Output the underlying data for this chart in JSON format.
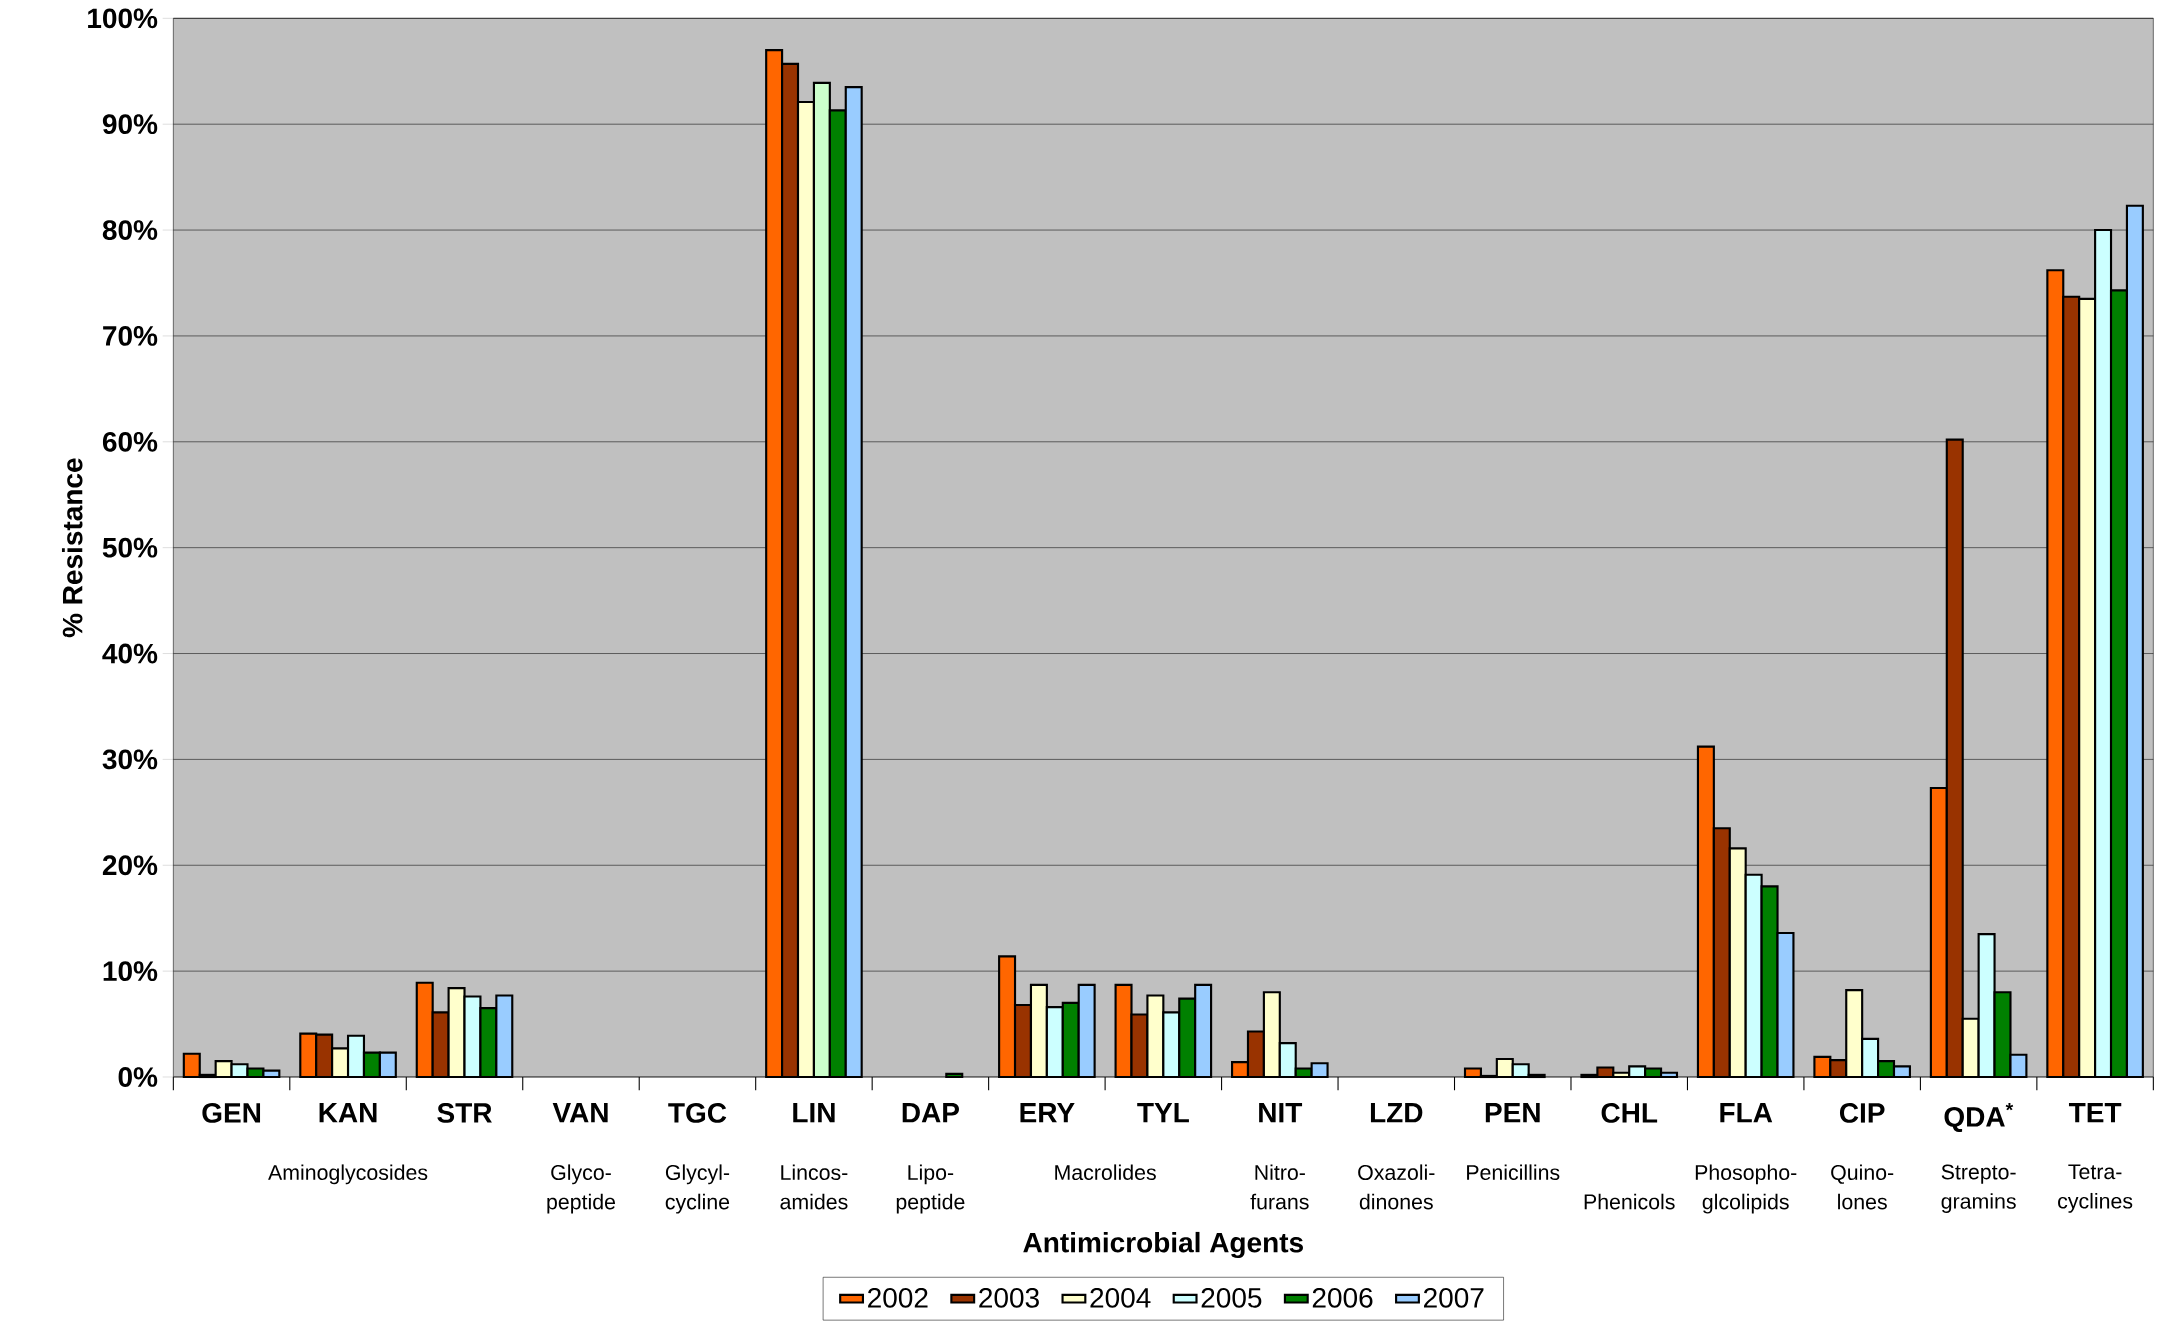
{
  "chart_data": {
    "type": "bar",
    "xlabel": "Antimicrobial Agents",
    "ylabel": "% Resistance",
    "categories": [
      "GEN",
      "KAN",
      "STR",
      "VAN",
      "TGC",
      "LIN",
      "DAP",
      "ERY",
      "TYL",
      "NIT",
      "LZD",
      "PEN",
      "CHL",
      "FLA",
      "CIP",
      "QDA$^{*}$",
      "TET"
    ],
    "series": [
      {
        "name": "2002",
        "color": "#ff6600",
        "values": [
          2.2,
          4.1,
          8.9,
          null,
          null,
          97.0,
          null,
          11.4,
          8.7,
          1.4,
          null,
          0.8,
          0.2,
          31.2,
          1.9,
          27.3,
          76.2
        ]
      },
      {
        "name": "2003",
        "color": "#993300",
        "values": [
          0.2,
          4.0,
          6.1,
          null,
          null,
          95.7,
          null,
          6.8,
          5.9,
          4.3,
          null,
          0.1,
          0.9,
          23.5,
          1.6,
          60.2,
          73.7
        ]
      },
      {
        "name": "2004",
        "color": "#ffffcc",
        "values": [
          1.5,
          2.7,
          8.4,
          null,
          null,
          92.1,
          null,
          8.7,
          7.7,
          8.0,
          null,
          1.7,
          0.4,
          21.6,
          8.2,
          5.5,
          73.5
        ]
      },
      {
        "name": "2005",
        "color": "#ccffff",
        "colors": [
          "#ccffff",
          "#ccffff",
          "#ccffff",
          "#ccffff",
          "#ccffff",
          "#ccffcc",
          "#ccffff",
          "#ccffff",
          "#ccffff",
          "#ccffff",
          "#ccffff",
          "#ccffff",
          "#ccffff",
          "#ccffff",
          "#ccffff",
          "#ccffff",
          "#ccffff"
        ],
        "values": [
          1.2,
          3.9,
          7.6,
          null,
          null,
          93.9,
          null,
          6.6,
          6.1,
          3.2,
          null,
          1.2,
          1.0,
          19.1,
          3.6,
          13.5,
          80.0
        ]
      },
      {
        "name": "2006",
        "color": "#008000",
        "values": [
          0.8,
          2.3,
          6.5,
          null,
          null,
          91.3,
          0.3,
          7.0,
          7.4,
          0.8,
          null,
          0.2,
          0.8,
          18.0,
          1.5,
          8.0,
          74.3
        ]
      },
      {
        "name": "2007",
        "color": "#99ccff",
        "values": [
          0.6,
          2.3,
          7.7,
          null,
          null,
          93.5,
          null,
          8.7,
          8.7,
          1.3,
          null,
          null,
          0.4,
          13.6,
          1.0,
          2.1,
          82.3
        ]
      }
    ],
    "ylim": [
      0,
      100
    ],
    "yticks": [
      {
        "value": 0,
        "label": "0%"
      },
      {
        "value": 10,
        "label": "10%"
      },
      {
        "value": 20,
        "label": "20%"
      },
      {
        "value": 30,
        "label": "30%"
      },
      {
        "value": 40,
        "label": "40%"
      },
      {
        "value": 50,
        "label": "50%"
      },
      {
        "value": 60,
        "label": "60%"
      },
      {
        "value": 70,
        "label": "70%"
      },
      {
        "value": 80,
        "label": "80%"
      },
      {
        "value": 90,
        "label": "90%"
      },
      {
        "value": 100,
        "label": "100%"
      }
    ],
    "grid": "y",
    "legend": "bottom",
    "annotations": [
      "Aminoglycosides",
      "Glyco- peptide",
      "Glycyl- cycline",
      "Lincos- amides",
      "Lipo- peptide",
      "Macrolides",
      "Nitro- furans",
      "Oxazoli- dinones",
      "Penicillins",
      "Phenicols",
      "Phosopho- glcolipids",
      "Quino- lones",
      "Strepto- gramins",
      "Tetra- cyclines"
    ]
  }
}
